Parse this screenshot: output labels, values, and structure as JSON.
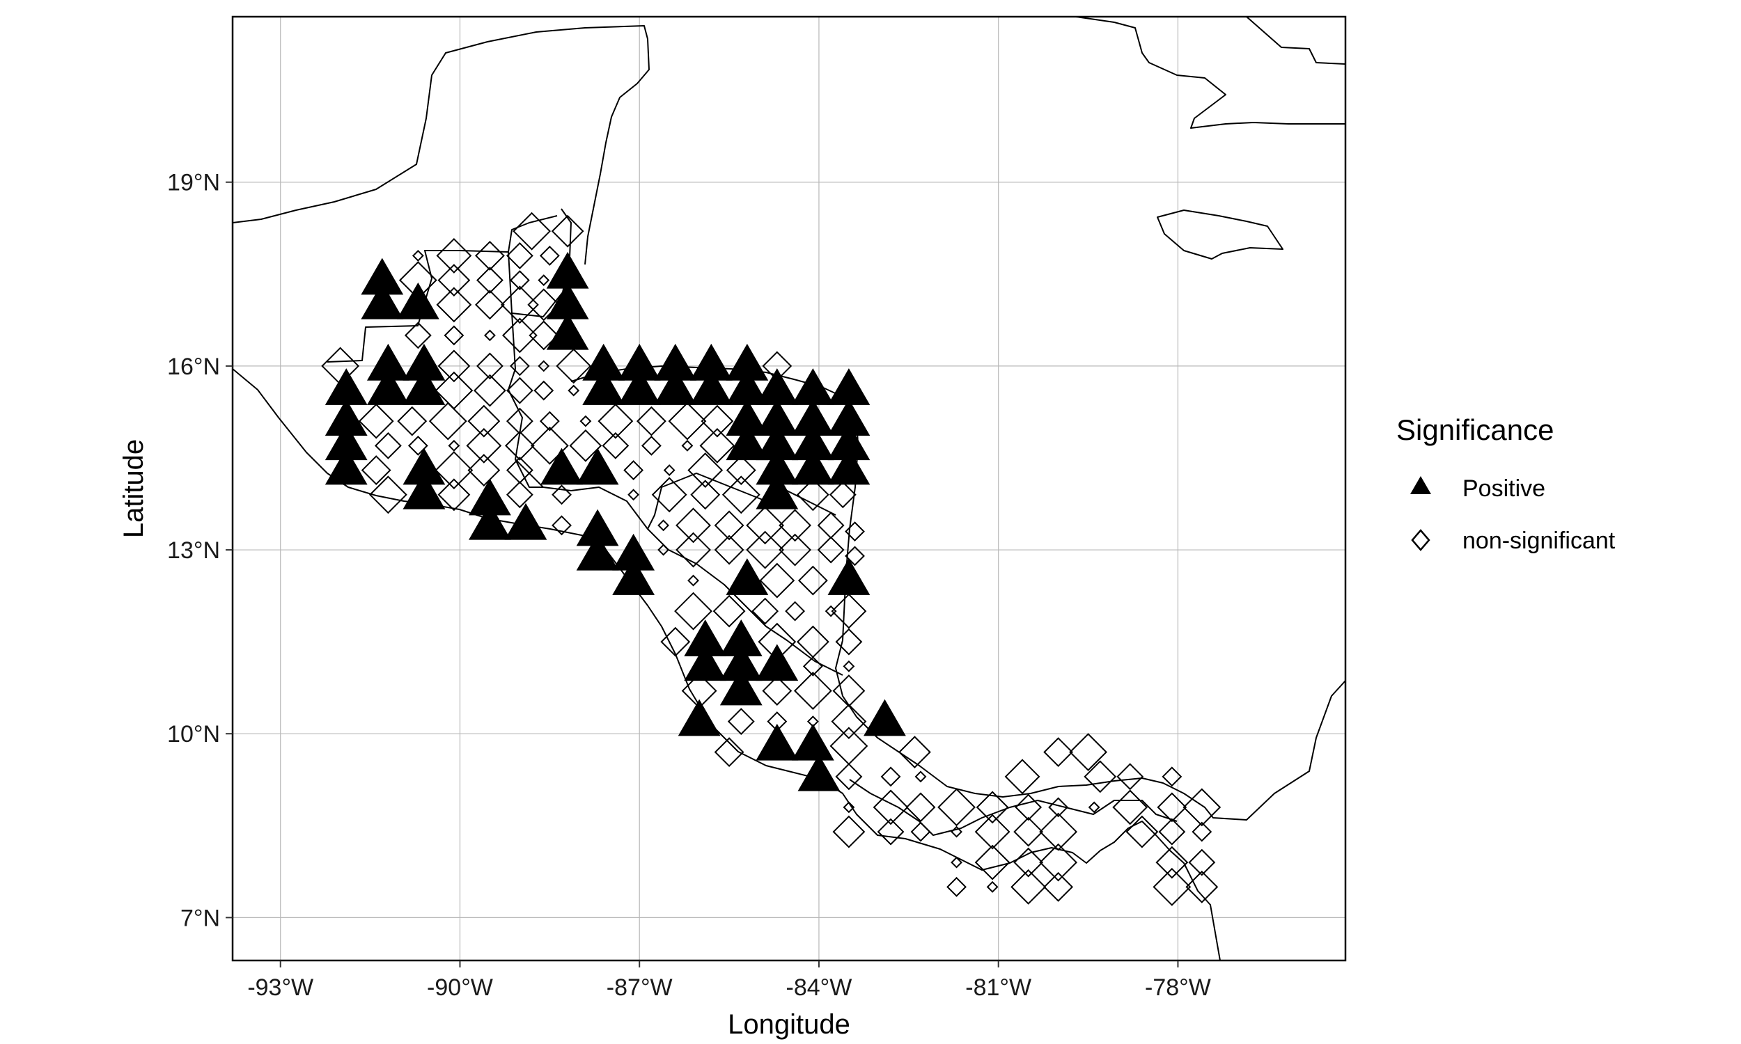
{
  "chart_data": {
    "type": "scatter",
    "title": "",
    "xlabel": "Longitude",
    "ylabel": "Latitude",
    "xlim": [
      -93.8,
      -75.2
    ],
    "ylim": [
      6.3,
      21.7
    ],
    "x_ticks": [
      -93,
      -90,
      -87,
      -84,
      -81,
      -78
    ],
    "x_tick_labels": [
      "-93°W",
      "-90°W",
      "-87°W",
      "-84°W",
      "-81°W",
      "-78°W"
    ],
    "y_ticks": [
      7,
      10,
      13,
      16,
      19
    ],
    "y_tick_labels": [
      "7°N",
      "10°N",
      "13°N",
      "16°N",
      "19°N"
    ],
    "grid": true,
    "legend": {
      "title": "Significance",
      "position": "right",
      "entries": [
        {
          "label": "Positive",
          "marker": "filled-triangle"
        },
        {
          "label": "non-significant",
          "marker": "open-diamond"
        }
      ]
    },
    "series": [
      {
        "name": "Positive",
        "marker": "filled-triangle",
        "color": "#000000",
        "points": [
          [
            -91.3,
            17.4
          ],
          [
            -91.3,
            17.0
          ],
          [
            -90.7,
            17.0
          ],
          [
            -91.2,
            16.0
          ],
          [
            -90.6,
            16.0
          ],
          [
            -91.9,
            15.6
          ],
          [
            -91.2,
            15.6
          ],
          [
            -90.6,
            15.6
          ],
          [
            -91.9,
            15.1
          ],
          [
            -91.9,
            14.7
          ],
          [
            -91.9,
            14.3
          ],
          [
            -90.6,
            14.3
          ],
          [
            -90.6,
            13.9
          ],
          [
            -89.5,
            13.8
          ],
          [
            -89.5,
            13.4
          ],
          [
            -88.9,
            13.4
          ],
          [
            -88.2,
            17.5
          ],
          [
            -88.2,
            17.0
          ],
          [
            -88.2,
            16.5
          ],
          [
            -88.3,
            14.3
          ],
          [
            -87.7,
            14.3
          ],
          [
            -87.7,
            13.3
          ],
          [
            -87.7,
            12.9
          ],
          [
            -87.1,
            12.9
          ],
          [
            -87.1,
            12.5
          ],
          [
            -87.6,
            16.0
          ],
          [
            -87.0,
            16.0
          ],
          [
            -86.4,
            16.0
          ],
          [
            -85.8,
            16.0
          ],
          [
            -85.2,
            16.0
          ],
          [
            -87.6,
            15.6
          ],
          [
            -87.0,
            15.6
          ],
          [
            -86.4,
            15.6
          ],
          [
            -85.8,
            15.6
          ],
          [
            -85.2,
            15.6
          ],
          [
            -84.7,
            15.6
          ],
          [
            -84.1,
            15.6
          ],
          [
            -83.5,
            15.6
          ],
          [
            -85.2,
            15.1
          ],
          [
            -84.7,
            15.1
          ],
          [
            -84.1,
            15.1
          ],
          [
            -83.5,
            15.1
          ],
          [
            -85.2,
            14.7
          ],
          [
            -84.7,
            14.7
          ],
          [
            -84.1,
            14.7
          ],
          [
            -83.5,
            14.7
          ],
          [
            -84.7,
            14.3
          ],
          [
            -84.1,
            14.3
          ],
          [
            -83.5,
            14.3
          ],
          [
            -84.7,
            13.9
          ],
          [
            -85.2,
            12.5
          ],
          [
            -83.5,
            12.5
          ],
          [
            -85.9,
            11.5
          ],
          [
            -85.3,
            11.5
          ],
          [
            -85.9,
            11.1
          ],
          [
            -85.3,
            11.1
          ],
          [
            -84.7,
            11.1
          ],
          [
            -85.3,
            10.7
          ],
          [
            -86.0,
            10.2
          ],
          [
            -82.9,
            10.2
          ],
          [
            -84.7,
            9.8
          ],
          [
            -84.1,
            9.8
          ],
          [
            -84.0,
            9.3
          ]
        ]
      },
      {
        "name": "non-significant",
        "marker": "open-diamond",
        "color": "#000000",
        "points": [
          [
            -88.8,
            18.2
          ],
          [
            -88.2,
            18.2
          ],
          [
            -89.0,
            17.8
          ],
          [
            -88.5,
            17.8
          ],
          [
            -90.7,
            17.8
          ],
          [
            -90.1,
            17.8
          ],
          [
            -89.5,
            17.8
          ],
          [
            -90.7,
            17.4
          ],
          [
            -90.1,
            17.4
          ],
          [
            -89.5,
            17.4
          ],
          [
            -89.0,
            17.4
          ],
          [
            -88.6,
            17.4
          ],
          [
            -90.1,
            17.0
          ],
          [
            -89.5,
            17.0
          ],
          [
            -89.0,
            17.0
          ],
          [
            -88.6,
            17.0
          ],
          [
            -90.7,
            16.5
          ],
          [
            -90.1,
            16.5
          ],
          [
            -89.5,
            16.5
          ],
          [
            -89.0,
            16.5
          ],
          [
            -88.6,
            16.5
          ],
          [
            -92.0,
            16.0
          ],
          [
            -90.1,
            16.0
          ],
          [
            -89.5,
            16.0
          ],
          [
            -89.0,
            16.0
          ],
          [
            -88.6,
            16.0
          ],
          [
            -88.1,
            16.0
          ],
          [
            -84.7,
            16.0
          ],
          [
            -90.1,
            15.6
          ],
          [
            -89.5,
            15.6
          ],
          [
            -89.0,
            15.6
          ],
          [
            -88.6,
            15.6
          ],
          [
            -88.1,
            15.6
          ],
          [
            -91.4,
            15.1
          ],
          [
            -90.8,
            15.1
          ],
          [
            -90.2,
            15.1
          ],
          [
            -89.6,
            15.1
          ],
          [
            -89.0,
            15.1
          ],
          [
            -88.5,
            15.1
          ],
          [
            -87.9,
            15.1
          ],
          [
            -87.4,
            15.1
          ],
          [
            -86.8,
            15.1
          ],
          [
            -86.2,
            15.1
          ],
          [
            -85.7,
            15.1
          ],
          [
            -91.2,
            14.7
          ],
          [
            -90.7,
            14.7
          ],
          [
            -90.1,
            14.7
          ],
          [
            -89.6,
            14.7
          ],
          [
            -89.0,
            14.7
          ],
          [
            -88.5,
            14.7
          ],
          [
            -87.9,
            14.7
          ],
          [
            -87.4,
            14.7
          ],
          [
            -86.8,
            14.7
          ],
          [
            -86.2,
            14.7
          ],
          [
            -85.7,
            14.7
          ],
          [
            -91.4,
            14.3
          ],
          [
            -90.1,
            14.3
          ],
          [
            -89.6,
            14.3
          ],
          [
            -89.0,
            14.3
          ],
          [
            -87.1,
            14.3
          ],
          [
            -86.5,
            14.3
          ],
          [
            -85.9,
            14.3
          ],
          [
            -85.3,
            14.3
          ],
          [
            -91.2,
            13.9
          ],
          [
            -90.1,
            13.9
          ],
          [
            -89.0,
            13.9
          ],
          [
            -88.3,
            13.9
          ],
          [
            -87.1,
            13.9
          ],
          [
            -86.5,
            13.9
          ],
          [
            -85.9,
            13.9
          ],
          [
            -85.3,
            13.9
          ],
          [
            -84.1,
            13.9
          ],
          [
            -83.6,
            13.9
          ],
          [
            -88.3,
            13.4
          ],
          [
            -86.6,
            13.4
          ],
          [
            -86.1,
            13.4
          ],
          [
            -85.5,
            13.4
          ],
          [
            -84.9,
            13.4
          ],
          [
            -84.4,
            13.4
          ],
          [
            -83.8,
            13.4
          ],
          [
            -83.4,
            13.3
          ],
          [
            -86.6,
            13.0
          ],
          [
            -86.1,
            13.0
          ],
          [
            -85.5,
            13.0
          ],
          [
            -84.9,
            13.0
          ],
          [
            -84.4,
            13.0
          ],
          [
            -83.8,
            13.0
          ],
          [
            -83.4,
            12.9
          ],
          [
            -86.1,
            12.5
          ],
          [
            -84.7,
            12.5
          ],
          [
            -84.1,
            12.5
          ],
          [
            -86.1,
            12.0
          ],
          [
            -85.5,
            12.0
          ],
          [
            -84.9,
            12.0
          ],
          [
            -84.4,
            12.0
          ],
          [
            -83.8,
            12.0
          ],
          [
            -83.5,
            12.0
          ],
          [
            -86.4,
            11.5
          ],
          [
            -84.7,
            11.5
          ],
          [
            -84.1,
            11.5
          ],
          [
            -83.5,
            11.5
          ],
          [
            -84.1,
            11.1
          ],
          [
            -83.5,
            11.1
          ],
          [
            -86.0,
            10.7
          ],
          [
            -84.7,
            10.7
          ],
          [
            -84.1,
            10.7
          ],
          [
            -83.5,
            10.7
          ],
          [
            -85.3,
            10.2
          ],
          [
            -84.7,
            10.2
          ],
          [
            -84.1,
            10.2
          ],
          [
            -83.5,
            10.2
          ],
          [
            -85.5,
            9.7
          ],
          [
            -83.5,
            9.8
          ],
          [
            -82.4,
            9.7
          ],
          [
            -83.5,
            9.3
          ],
          [
            -82.8,
            9.3
          ],
          [
            -82.3,
            9.3
          ],
          [
            -80.6,
            9.3
          ],
          [
            -80.0,
            9.7
          ],
          [
            -79.5,
            9.7
          ],
          [
            -79.3,
            9.3
          ],
          [
            -78.8,
            9.3
          ],
          [
            -78.1,
            9.3
          ],
          [
            -83.5,
            8.8
          ],
          [
            -82.8,
            8.8
          ],
          [
            -82.3,
            8.8
          ],
          [
            -81.7,
            8.8
          ],
          [
            -81.1,
            8.8
          ],
          [
            -80.5,
            8.8
          ],
          [
            -80.0,
            8.8
          ],
          [
            -79.4,
            8.8
          ],
          [
            -78.8,
            8.8
          ],
          [
            -78.1,
            8.8
          ],
          [
            -77.6,
            8.8
          ],
          [
            -83.5,
            8.4
          ],
          [
            -82.8,
            8.4
          ],
          [
            -82.3,
            8.4
          ],
          [
            -81.7,
            8.4
          ],
          [
            -81.1,
            8.4
          ],
          [
            -80.5,
            8.4
          ],
          [
            -80.0,
            8.4
          ],
          [
            -78.6,
            8.4
          ],
          [
            -78.1,
            8.4
          ],
          [
            -77.6,
            8.4
          ],
          [
            -81.7,
            7.9
          ],
          [
            -81.1,
            7.9
          ],
          [
            -80.5,
            7.9
          ],
          [
            -80.0,
            7.9
          ],
          [
            -78.1,
            7.9
          ],
          [
            -77.6,
            7.9
          ],
          [
            -81.7,
            7.5
          ],
          [
            -81.1,
            7.5
          ],
          [
            -80.5,
            7.5
          ],
          [
            -80.0,
            7.5
          ],
          [
            -78.1,
            7.5
          ],
          [
            -77.6,
            7.5
          ]
        ]
      }
    ]
  }
}
